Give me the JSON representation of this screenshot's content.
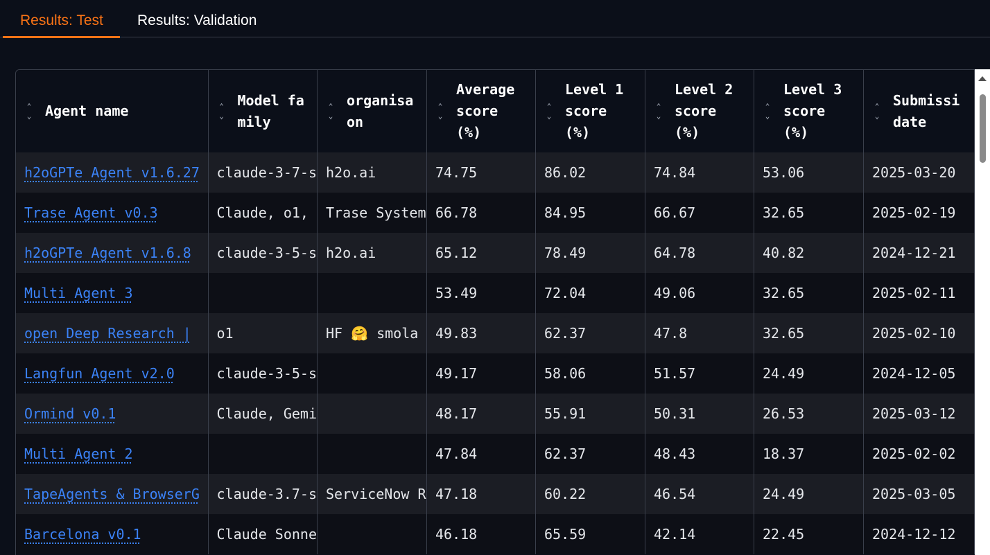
{
  "tabs": [
    {
      "label": "Results: Test",
      "active": true
    },
    {
      "label": "Results: Validation",
      "active": false
    }
  ],
  "colors": {
    "accent": "#f97316",
    "link": "#3b82f6",
    "background": "#0b0f19"
  },
  "sort_icon": {
    "up": "⌃",
    "down": "⌄"
  },
  "table": {
    "columns": [
      {
        "key": "agent_name",
        "label": "Agent name"
      },
      {
        "key": "model_family",
        "label": "Model family"
      },
      {
        "key": "organisation",
        "label": "organisaon"
      },
      {
        "key": "average_score",
        "label": "Average score (%)"
      },
      {
        "key": "level1",
        "label": "Level 1 score (%)"
      },
      {
        "key": "level2",
        "label": "Level 2 score (%)"
      },
      {
        "key": "level3",
        "label": "Level 3 score (%)"
      },
      {
        "key": "submission_date",
        "label": "Submissi date"
      }
    ],
    "rows": [
      {
        "agent_name": "h2oGPTe Agent v1.6.27",
        "model_family": "claude-3-7-s",
        "organisation": "h2o.ai",
        "average_score": "74.75",
        "level1": "86.02",
        "level2": "74.84",
        "level3": "53.06",
        "submission_date": "2025-03-20"
      },
      {
        "agent_name": "Trase Agent v0.3",
        "model_family": "Claude, o1,",
        "organisation": "Trase System",
        "average_score": "66.78",
        "level1": "84.95",
        "level2": "66.67",
        "level3": "32.65",
        "submission_date": "2025-02-19"
      },
      {
        "agent_name": "h2oGPTe Agent v1.6.8",
        "model_family": "claude-3-5-s",
        "organisation": "h2o.ai",
        "average_score": "65.12",
        "level1": "78.49",
        "level2": "64.78",
        "level3": "40.82",
        "submission_date": "2024-12-21"
      },
      {
        "agent_name": "Multi Agent 3",
        "model_family": "",
        "organisation": "",
        "average_score": "53.49",
        "level1": "72.04",
        "level2": "49.06",
        "level3": "32.65",
        "submission_date": "2025-02-11"
      },
      {
        "agent_name": "open Deep Research |",
        "model_family": "o1",
        "organisation": "HF 🤗 smola",
        "average_score": "49.83",
        "level1": "62.37",
        "level2": "47.8",
        "level3": "32.65",
        "submission_date": "2025-02-10"
      },
      {
        "agent_name": "Langfun Agent v2.0",
        "model_family": "claude-3-5-s",
        "organisation": "",
        "average_score": "49.17",
        "level1": "58.06",
        "level2": "51.57",
        "level3": "24.49",
        "submission_date": "2024-12-05"
      },
      {
        "agent_name": "Ormind v0.1",
        "model_family": "Claude, Gemi",
        "organisation": "",
        "average_score": "48.17",
        "level1": "55.91",
        "level2": "50.31",
        "level3": "26.53",
        "submission_date": "2025-03-12"
      },
      {
        "agent_name": "Multi Agent 2",
        "model_family": "",
        "organisation": "",
        "average_score": "47.84",
        "level1": "62.37",
        "level2": "48.43",
        "level3": "18.37",
        "submission_date": "2025-02-02"
      },
      {
        "agent_name": "TapeAgents & BrowserG",
        "model_family": "claude-3.7-s",
        "organisation": "ServiceNow R",
        "average_score": "47.18",
        "level1": "60.22",
        "level2": "46.54",
        "level3": "24.49",
        "submission_date": "2025-03-05"
      },
      {
        "agent_name": "Barcelona v0.1",
        "model_family": "Claude Sonne",
        "organisation": "",
        "average_score": "46.18",
        "level1": "65.59",
        "level2": "42.14",
        "level3": "22.45",
        "submission_date": "2024-12-12"
      }
    ]
  }
}
